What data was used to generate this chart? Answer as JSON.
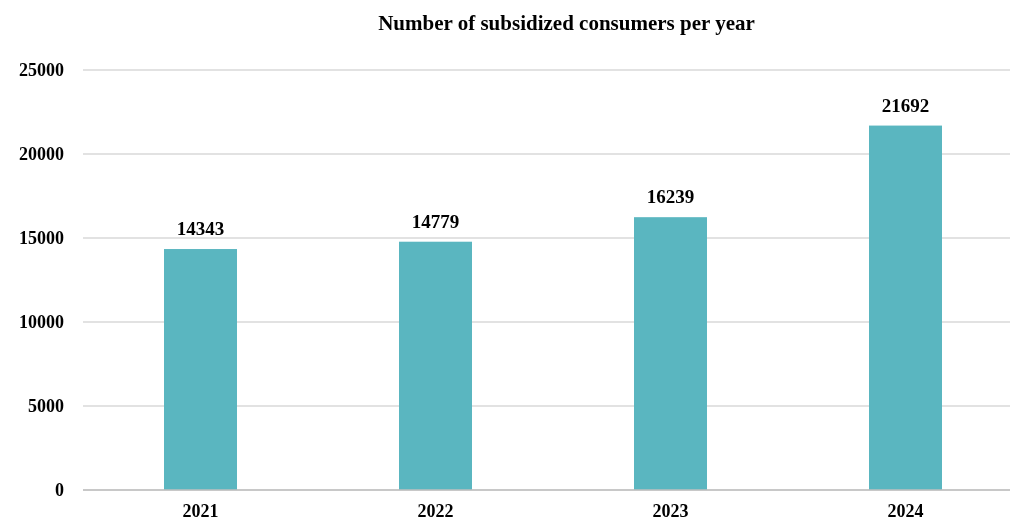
{
  "chart_data": {
    "type": "bar",
    "title": "Number of subsidized consumers per year",
    "categories": [
      "2021",
      "2022",
      "2023",
      "2024"
    ],
    "values": [
      14343,
      14779,
      16239,
      21692
    ],
    "color": "#5ab6c0",
    "ylim": [
      0,
      25000
    ],
    "yticks": [
      0,
      5000,
      10000,
      15000,
      20000,
      25000
    ],
    "grid": "y",
    "data_labels": true
  }
}
